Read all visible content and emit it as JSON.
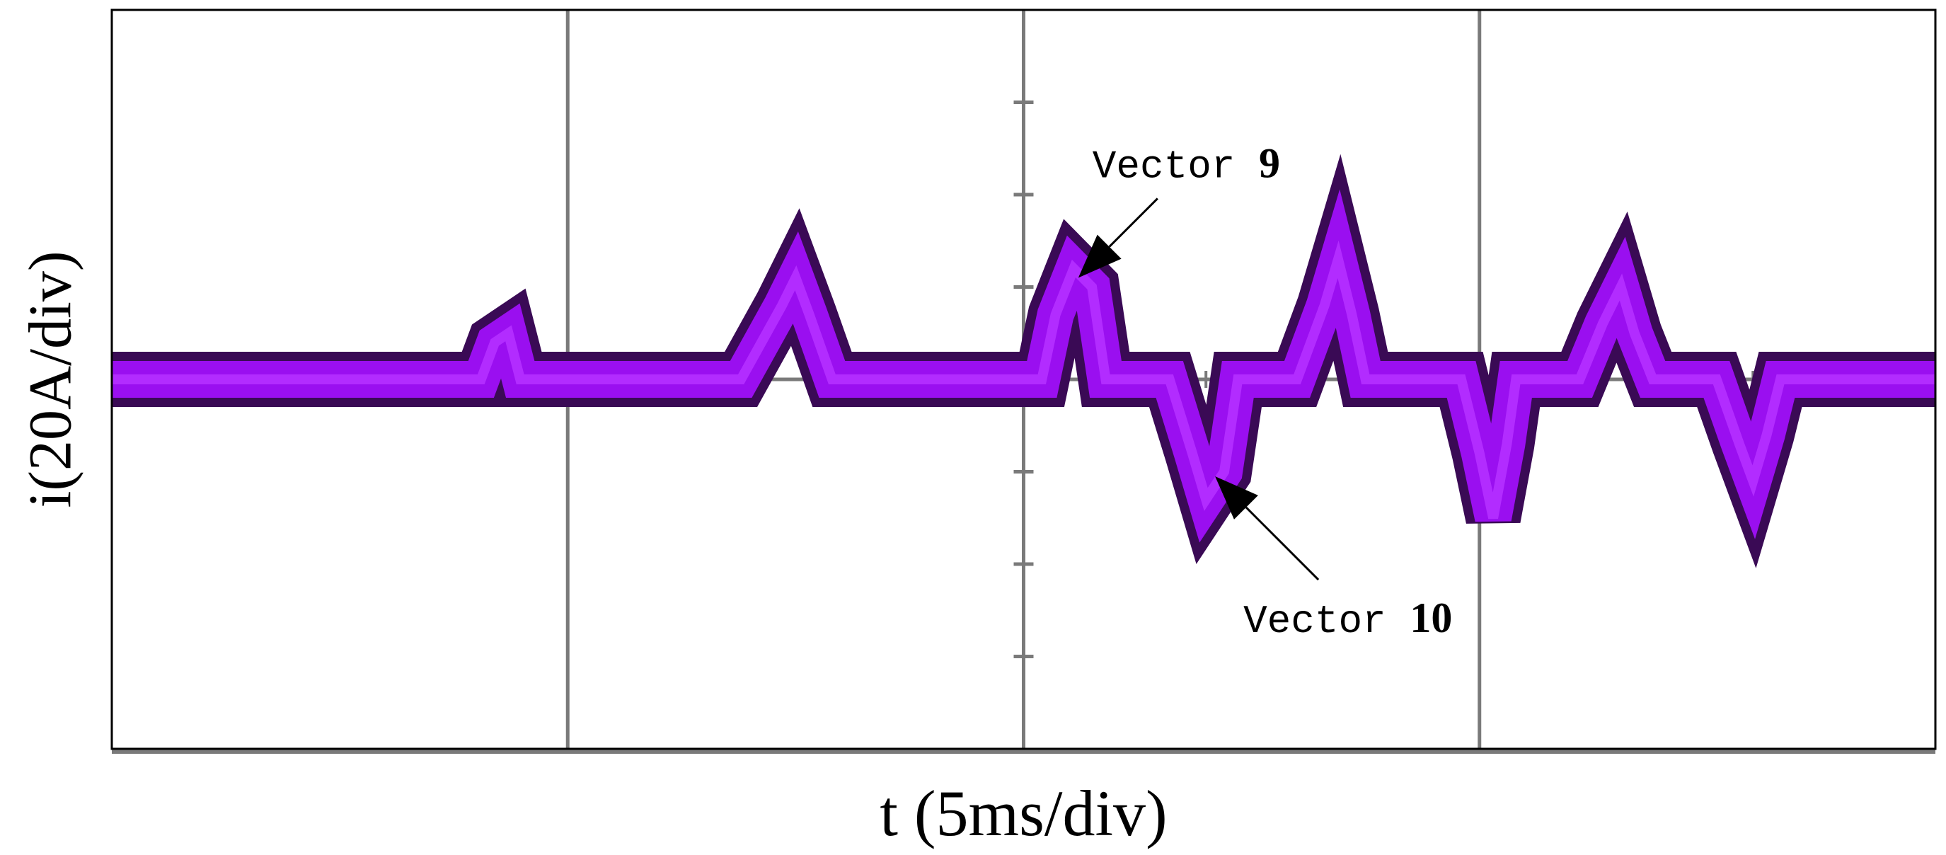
{
  "chart_data": {
    "type": "line",
    "title": "",
    "xlabel": "t (5ms/div)",
    "ylabel": "i(20A/div)",
    "x_divisions": 4,
    "y_divisions": 8,
    "x_unit_per_div": "5ms",
    "y_unit_per_div": "20A",
    "xlim": [
      0,
      20
    ],
    "ylim": [
      -80,
      80
    ],
    "grid": true,
    "colors": {
      "trace_core": "#9a0ff0",
      "trace_edge": "#3a0a55",
      "grid": "#7a7a7a",
      "frame": "#000000"
    },
    "series": [
      {
        "values": [
          [
            0.0,
            0
          ],
          [
            4.05,
            0
          ],
          [
            4.2,
            8
          ],
          [
            4.35,
            10
          ],
          [
            4.48,
            0
          ],
          [
            6.9,
            0
          ],
          [
            7.35,
            16
          ],
          [
            7.5,
            22
          ],
          [
            7.65,
            14
          ],
          [
            7.9,
            0
          ],
          [
            10.2,
            0
          ],
          [
            10.35,
            14
          ],
          [
            10.55,
            24
          ],
          [
            10.75,
            20
          ],
          [
            10.9,
            0
          ],
          [
            11.6,
            0
          ],
          [
            11.85,
            -16
          ],
          [
            12.0,
            -26
          ],
          [
            12.2,
            -20
          ],
          [
            12.35,
            0
          ],
          [
            13.0,
            0
          ],
          [
            13.3,
            16
          ],
          [
            13.45,
            26
          ],
          [
            13.6,
            14
          ],
          [
            13.75,
            0
          ],
          [
            14.8,
            0
          ],
          [
            15.0,
            -16
          ],
          [
            15.15,
            -30
          ],
          [
            15.3,
            -14
          ],
          [
            15.4,
            0
          ],
          [
            16.1,
            0
          ],
          [
            16.35,
            12
          ],
          [
            16.55,
            20
          ],
          [
            16.7,
            10
          ],
          [
            16.9,
            0
          ],
          [
            17.6,
            0
          ],
          [
            17.85,
            -14
          ],
          [
            18.0,
            -22
          ],
          [
            18.15,
            -12
          ],
          [
            18.3,
            0
          ],
          [
            20.0,
            0
          ]
        ]
      }
    ],
    "annotations": [
      {
        "label": "Vector",
        "number": "9",
        "x": 10.6,
        "y": 22,
        "direction": "points-left-down"
      },
      {
        "label": "Vector",
        "number": "10",
        "x": 12.1,
        "y": -21,
        "direction": "points-left-up"
      }
    ]
  }
}
